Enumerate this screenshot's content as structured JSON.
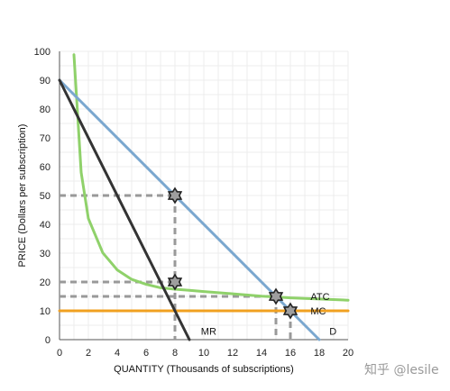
{
  "chart_data": {
    "type": "line",
    "xlabel": "QUANTITY (Thousands of subscriptions)",
    "ylabel": "PRICE (Dollars per subscription)",
    "xlim": [
      0,
      20
    ],
    "ylim": [
      0,
      100
    ],
    "xticks": [
      0,
      2,
      4,
      6,
      8,
      10,
      12,
      14,
      16,
      18,
      20
    ],
    "yticks": [
      0,
      10,
      20,
      30,
      40,
      50,
      60,
      70,
      80,
      90,
      100
    ],
    "grid": true,
    "series": [
      {
        "name": "D",
        "color": "#7aa7cf",
        "x": [
          0,
          18
        ],
        "y": [
          90,
          0
        ]
      },
      {
        "name": "MR",
        "color": "#333333",
        "x": [
          0,
          9
        ],
        "y": [
          90,
          0
        ]
      },
      {
        "name": "MC",
        "color": "#f0a020",
        "x": [
          0,
          20
        ],
        "y": [
          10,
          10
        ]
      },
      {
        "name": "ATC",
        "color": "#8fd16a",
        "x": [
          1,
          1.5,
          2,
          3,
          4,
          5,
          6,
          7,
          8,
          9,
          10,
          12,
          14,
          15,
          16,
          18,
          20
        ],
        "y": [
          98.8,
          58.0,
          42.0,
          30.1,
          24.2,
          20.9,
          19.2,
          18.0,
          17.5,
          17.1,
          16.7,
          15.9,
          15.1,
          14.8,
          14.5,
          14.1,
          13.7
        ]
      }
    ],
    "markers": [
      {
        "x": 8,
        "y": 50
      },
      {
        "x": 8,
        "y": 20
      },
      {
        "x": 15,
        "y": 15
      },
      {
        "x": 16,
        "y": 10
      }
    ],
    "guides": [
      {
        "x": 8,
        "y": 50
      },
      {
        "x": 8,
        "y": 20
      },
      {
        "x": 15,
        "y": 15
      },
      {
        "x": 16,
        "y": 10
      }
    ],
    "curve_labels": [
      {
        "text": "ATC",
        "x": 17.4,
        "y": 15
      },
      {
        "text": "MC",
        "x": 17.4,
        "y": 10
      },
      {
        "text": "MR",
        "x": 9.8,
        "y": 3
      },
      {
        "text": "D",
        "x": 18.7,
        "y": 3
      }
    ]
  },
  "watermark": "知乎 @lesile"
}
